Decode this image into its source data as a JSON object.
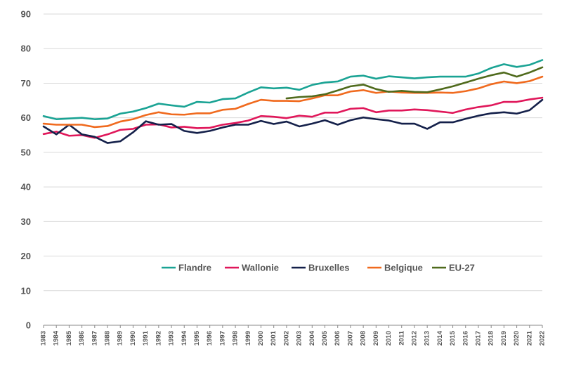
{
  "chart_data": {
    "type": "line",
    "title": "",
    "xlabel": "",
    "ylabel": "",
    "ylim": [
      0,
      90
    ],
    "yticks": [
      "0",
      "10",
      "20",
      "30",
      "40",
      "50",
      "60",
      "70",
      "80",
      "90"
    ],
    "grid": true,
    "legend_position": "lower-center",
    "x": [
      "1983",
      "1984",
      "1985",
      "1986",
      "1987",
      "1988",
      "1989",
      "1990",
      "1991",
      "1992",
      "1993",
      "1994",
      "1995",
      "1996",
      "1997",
      "1998",
      "1999",
      "2000",
      "2001",
      "2002",
      "2003",
      "2004",
      "2005",
      "2006",
      "2007",
      "2008",
      "2009",
      "2010",
      "2011",
      "2012",
      "2013",
      "2014",
      "2015",
      "2016",
      "2017",
      "2018",
      "2019",
      "2020",
      "2021",
      "2022"
    ],
    "series": [
      {
        "name": "Flandre",
        "color": "#1aa394",
        "values": [
          60.5,
          59.6,
          59.8,
          60.0,
          59.6,
          59.8,
          61.2,
          61.8,
          62.8,
          64.1,
          63.6,
          63.2,
          64.6,
          64.4,
          65.4,
          65.6,
          67.3,
          68.8,
          68.5,
          68.7,
          68.1,
          69.5,
          70.2,
          70.5,
          71.9,
          72.2,
          71.3,
          72.0,
          71.7,
          71.4,
          71.7,
          71.9,
          71.9,
          71.9,
          72.8,
          74.4,
          75.5,
          74.7,
          75.3,
          76.7
        ]
      },
      {
        "name": "Wallonie",
        "color": "#e0175a",
        "values": [
          55.3,
          56.0,
          54.8,
          55.0,
          54.2,
          55.2,
          56.5,
          56.8,
          58.0,
          58.1,
          57.2,
          57.4,
          57.0,
          57.1,
          58.0,
          58.5,
          59.2,
          60.5,
          60.3,
          59.9,
          60.6,
          60.3,
          61.5,
          61.5,
          62.6,
          62.8,
          61.6,
          62.1,
          62.1,
          62.4,
          62.2,
          61.8,
          61.4,
          62.4,
          63.1,
          63.6,
          64.6,
          64.6,
          65.3,
          65.8
        ]
      },
      {
        "name": "Bruxelles",
        "color": "#14204a",
        "values": [
          57.5,
          55.2,
          58.0,
          55.2,
          54.5,
          52.7,
          53.2,
          55.8,
          59.0,
          58.0,
          58.2,
          56.2,
          55.6,
          56.2,
          57.2,
          58.0,
          58.0,
          59.1,
          58.2,
          58.9,
          57.5,
          58.3,
          59.3,
          58.0,
          59.3,
          60.1,
          59.6,
          59.2,
          58.3,
          58.3,
          56.8,
          58.7,
          58.7,
          59.7,
          60.6,
          61.3,
          61.6,
          61.2,
          62.2,
          65.2
        ]
      },
      {
        "name": "Belgique",
        "color": "#f06a1e",
        "values": [
          58.3,
          58.0,
          58.0,
          58.0,
          57.3,
          57.6,
          58.9,
          59.6,
          60.8,
          61.6,
          61.0,
          60.9,
          61.3,
          61.3,
          62.3,
          62.6,
          64.0,
          65.2,
          64.9,
          64.9,
          64.8,
          65.6,
          66.5,
          66.5,
          67.6,
          68.0,
          67.2,
          67.6,
          67.3,
          67.2,
          67.2,
          67.3,
          67.2,
          67.7,
          68.5,
          69.7,
          70.5,
          70.0,
          70.6,
          71.9
        ]
      },
      {
        "name": "EU-27",
        "color": "#4f6a1c",
        "values": [
          null,
          null,
          null,
          null,
          null,
          null,
          null,
          null,
          null,
          null,
          null,
          null,
          null,
          null,
          null,
          null,
          null,
          null,
          null,
          65.6,
          66.0,
          66.2,
          66.8,
          67.9,
          69.1,
          69.6,
          68.3,
          67.5,
          67.8,
          67.5,
          67.4,
          68.2,
          69.1,
          70.2,
          71.3,
          72.3,
          73.1,
          71.9,
          73.1,
          74.6
        ]
      }
    ]
  }
}
